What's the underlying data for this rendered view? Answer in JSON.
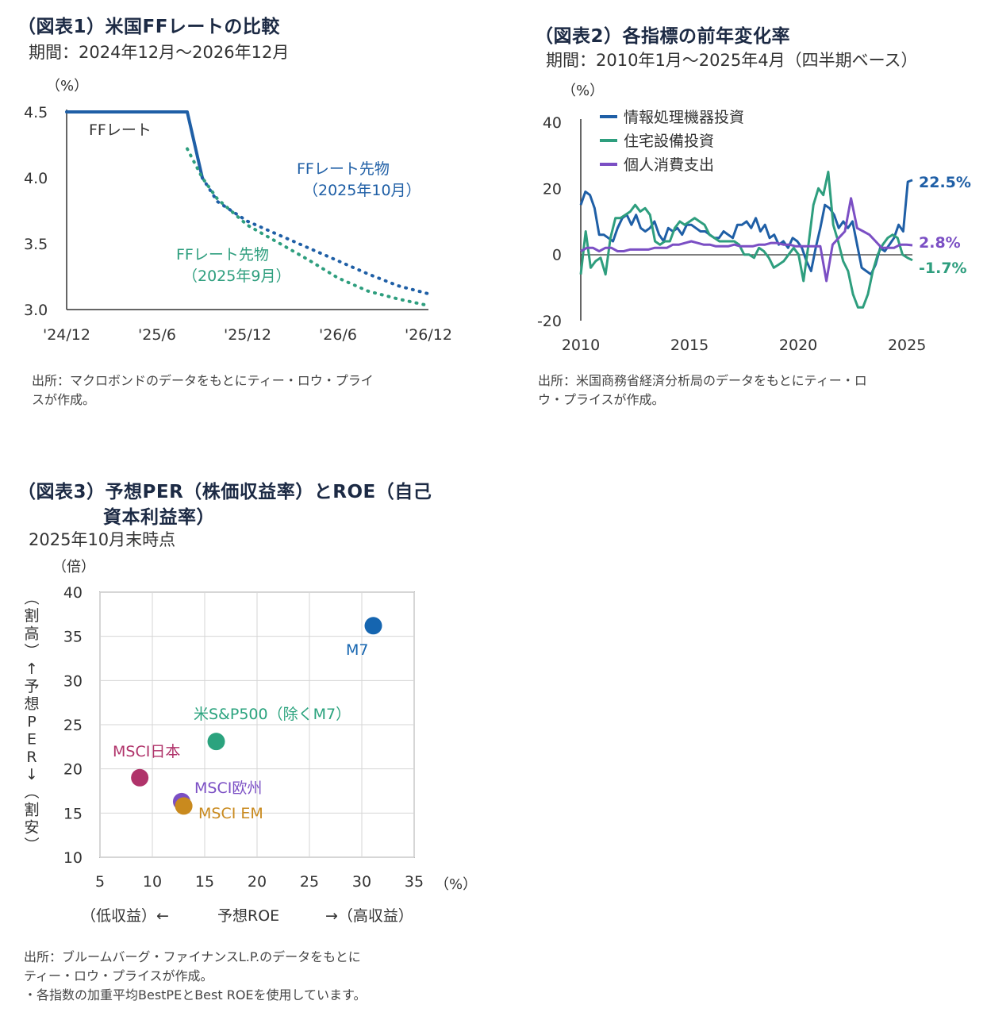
{
  "chart1": {
    "title": "（図表1）米国FFレートの比較",
    "subtitle": "期間：2024年12月～2026年12月",
    "source_lines": [
      "出所：マクロボンドのデータをもとにティー・ロウ・プライ",
      "スが作成。"
    ],
    "unit": "（%）",
    "colors": {
      "ff": "#1f5fa6",
      "fut10": "#1f5fa6",
      "fut9": "#2e9e7e"
    },
    "chart_data": {
      "type": "line",
      "xlabel": "",
      "ylabel": "（%）",
      "ylim": [
        3.0,
        4.5
      ],
      "yticks": [
        "3.0",
        "3.5",
        "4.0",
        "4.5"
      ],
      "xticks": [
        "'24/12",
        "'25/6",
        "'25/12",
        "'26/6",
        "'26/12"
      ],
      "series": [
        {
          "name": "FFレート",
          "x": [
            "2024-12",
            "2025-08",
            "2025-09"
          ],
          "y": [
            4.5,
            4.5,
            4.0
          ]
        },
        {
          "name": "FFレート先物（2025年10月）",
          "x": [
            "2025-09",
            "2025-10",
            "2025-12",
            "2026-02",
            "2026-04",
            "2026-06",
            "2026-08",
            "2026-10",
            "2026-12"
          ],
          "y": [
            4.0,
            3.82,
            3.67,
            3.57,
            3.47,
            3.37,
            3.27,
            3.18,
            3.12
          ]
        },
        {
          "name": "FFレート先物（2025年9月）",
          "x": [
            "2025-08",
            "2025-09",
            "2025-10",
            "2025-12",
            "2026-02",
            "2026-04",
            "2026-06",
            "2026-08",
            "2026-10",
            "2026-12"
          ],
          "y": [
            4.22,
            4.0,
            3.84,
            3.64,
            3.51,
            3.38,
            3.24,
            3.14,
            3.08,
            3.03
          ]
        }
      ],
      "labels": {
        "ff": "FFレート",
        "fut10_a": "FFレート先物",
        "fut10_b": "（2025年10月）",
        "fut9_a": "FFレート先物",
        "fut9_b": "（2025年9月）"
      }
    }
  },
  "chart2": {
    "title": "（図表2）各指標の前年変化率",
    "subtitle": "期間：2010年1月～2025年4月（四半期ベース）",
    "source_lines": [
      "出所：米国商務省経済分析局のデータをもとにティー・ロ",
      "ウ・プライスが作成。"
    ],
    "unit": "（%）",
    "colors": {
      "info": "#1f5fa6",
      "housing": "#2e9e7e",
      "consumer": "#7b4fc4"
    },
    "chart_data": {
      "type": "line",
      "ylim": [
        -20,
        40
      ],
      "yticks": [
        "-20",
        "0",
        "20",
        "40"
      ],
      "xticks": [
        "2010",
        "2015",
        "2020",
        "2025"
      ],
      "x_start": 2010.0,
      "x_end": 2025.25,
      "series": [
        {
          "name": "情報処理機器投資",
          "end_label": "22.5%",
          "values": [
            15,
            19,
            18,
            14,
            6,
            6,
            5,
            4,
            8,
            11,
            12,
            9,
            12,
            8,
            7,
            8,
            10,
            6,
            4,
            8,
            7,
            8,
            6,
            9,
            9,
            8,
            7,
            7,
            6,
            5,
            5,
            7,
            6,
            5,
            9,
            9,
            10,
            8,
            11,
            7,
            9,
            5,
            6,
            3,
            4,
            2,
            5,
            4,
            2,
            -2,
            -5,
            2,
            8,
            15,
            14,
            12,
            8,
            10,
            8,
            10,
            3,
            -4,
            -5,
            -6,
            -3,
            2,
            1,
            3,
            5,
            9,
            7,
            22,
            22.5
          ]
        },
        {
          "name": "住宅設備投資",
          "end_label": "-1.7%",
          "values": [
            -6,
            7,
            -4,
            -2,
            -1,
            -6,
            5,
            11,
            11,
            12,
            13,
            15,
            13,
            14,
            12,
            4,
            3,
            4,
            4,
            8,
            10,
            9,
            10,
            11,
            10,
            9,
            6,
            5,
            4,
            4,
            4,
            4,
            3,
            0,
            0,
            -1,
            2,
            1,
            -1,
            -4,
            -3,
            -2,
            0,
            2,
            0,
            -8,
            3,
            15,
            20,
            18,
            25,
            9,
            4,
            -2,
            -5,
            -12,
            -16,
            -16,
            -12,
            -5,
            0,
            3,
            5,
            6,
            5,
            0,
            -1,
            -1.7
          ]
        },
        {
          "name": "個人消費支出",
          "end_label": "2.8%",
          "values": [
            1,
            2,
            2,
            1,
            2,
            2,
            1,
            1,
            1.5,
            1.5,
            1.5,
            1.5,
            2,
            2,
            2,
            3,
            3,
            3.5,
            4,
            3.5,
            3,
            3,
            2.5,
            2.5,
            2.5,
            3,
            2.5,
            2.5,
            2.5,
            3,
            3,
            3.5,
            3.5,
            3,
            3,
            2.5,
            2.5,
            2.5,
            2.5,
            2.5,
            -8,
            3,
            5,
            7,
            17,
            8,
            7,
            6,
            4,
            2,
            2,
            2,
            3,
            3,
            2.8
          ]
        }
      ]
    }
  },
  "chart3": {
    "title_line1": "（図表3）予想PER（株価収益率）とROE（自己",
    "title_line2": "資本利益率）",
    "subtitle": "2025年10月末時点",
    "source_lines": [
      "出所：ブルームバーグ・ファイナンスL.P.のデータをもとに",
      "ティー・ロウ・プライスが作成。",
      "・各指数の加重平均BestPEとBest ROEを使用しています。"
    ],
    "yunit": "（倍）",
    "xunit": "（%）",
    "ylabel_text": "（割高）↑予想PER↓（割安）",
    "xlabel_left": "（低収益）←",
    "xlabel_mid": "予想ROE",
    "xlabel_right": "→（高収益）",
    "chart_data": {
      "type": "scatter",
      "xlim": [
        5,
        35
      ],
      "ylim": [
        10,
        40
      ],
      "xticks": [
        "5",
        "10",
        "15",
        "20",
        "25",
        "30",
        "35"
      ],
      "yticks": [
        "10",
        "15",
        "20",
        "25",
        "30",
        "35",
        "40"
      ],
      "points": [
        {
          "name": "M7",
          "x": 31.1,
          "y": 36.2,
          "color": "#1565b0"
        },
        {
          "name": "米S&P500（除くM7）",
          "x": 16.1,
          "y": 23.1,
          "color": "#2ba37e"
        },
        {
          "name": "MSCI日本",
          "x": 8.8,
          "y": 19.0,
          "color": "#b0336a"
        },
        {
          "name": "MSCI欧州",
          "x": 12.8,
          "y": 16.3,
          "color": "#7b4fc4"
        },
        {
          "name": "MSCI EM",
          "x": 13.0,
          "y": 15.8,
          "color": "#c98a1e"
        }
      ]
    }
  }
}
